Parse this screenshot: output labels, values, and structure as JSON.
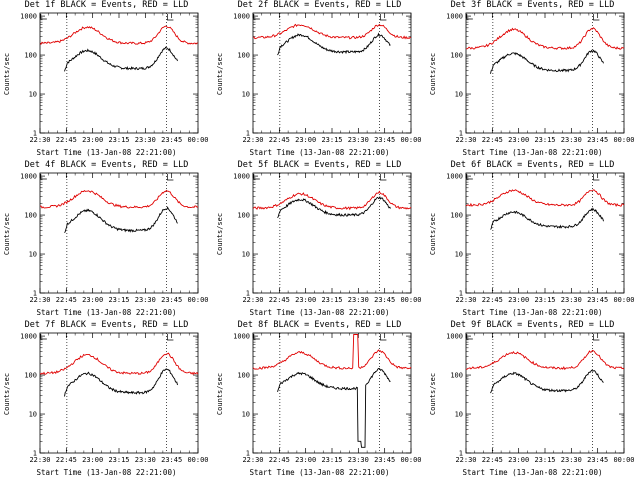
{
  "figure": {
    "background": "#ffffff",
    "event_color": "#000000",
    "lld_color": "#e00000"
  },
  "chart_data": [
    {
      "type": "line",
      "title": "Det 1f BLACK = Events, RED = LLD",
      "ylabel": "Counts/sec",
      "xlabel": "Start Time (13-Jan-08 22:21:00)",
      "x_ticks": [
        "22:30",
        "22:45",
        "23:00",
        "23:15",
        "23:30",
        "23:45",
        "00:00"
      ],
      "y_ticks": [
        "1",
        "10",
        "100",
        "1000"
      ],
      "ylim": [
        1,
        1200
      ],
      "yscale": "log",
      "shape": "normal",
      "series": [
        {
          "name": "Events",
          "color": "#000000",
          "base": 45,
          "peak1": 130,
          "peak2": 150
        },
        {
          "name": "LLD",
          "color": "#e00000",
          "base": 200,
          "peak1": 520,
          "peak2": 550
        }
      ]
    },
    {
      "type": "line",
      "title": "Det 2f BLACK = Events, RED = LLD",
      "ylabel": "Counts/sec",
      "xlabel": "Start Time (13-Jan-08 22:21:00)",
      "x_ticks": [
        "22:30",
        "22:45",
        "23:00",
        "23:15",
        "23:30",
        "23:45",
        "00:00"
      ],
      "y_ticks": [
        "1",
        "10",
        "100",
        "1000"
      ],
      "ylim": [
        1,
        1200
      ],
      "yscale": "log",
      "shape": "normal",
      "series": [
        {
          "name": "Events",
          "color": "#000000",
          "base": 120,
          "peak1": 330,
          "peak2": 330
        },
        {
          "name": "LLD",
          "color": "#e00000",
          "base": 280,
          "peak1": 600,
          "peak2": 600
        }
      ]
    },
    {
      "type": "line",
      "title": "Det 3f BLACK = Events, RED = LLD",
      "ylabel": "Counts/sec",
      "xlabel": "Start Time (13-Jan-08 22:21:00)",
      "x_ticks": [
        "22:30",
        "22:45",
        "23:00",
        "23:15",
        "23:30",
        "23:45",
        "00:00"
      ],
      "y_ticks": [
        "1",
        "10",
        "100",
        "1000"
      ],
      "ylim": [
        1,
        1200
      ],
      "yscale": "log",
      "shape": "normal",
      "series": [
        {
          "name": "Events",
          "color": "#000000",
          "base": 40,
          "peak1": 110,
          "peak2": 130
        },
        {
          "name": "LLD",
          "color": "#e00000",
          "base": 150,
          "peak1": 450,
          "peak2": 480
        }
      ]
    },
    {
      "type": "line",
      "title": "Det 4f BLACK = Events, RED = LLD",
      "ylabel": "Counts/sec",
      "xlabel": "Start Time (13-Jan-08 22:21:00)",
      "x_ticks": [
        "22:30",
        "22:45",
        "23:00",
        "23:15",
        "23:30",
        "23:45",
        "00:00"
      ],
      "y_ticks": [
        "1",
        "10",
        "100",
        "1000"
      ],
      "ylim": [
        1,
        1200
      ],
      "yscale": "log",
      "shape": "normal",
      "series": [
        {
          "name": "Events",
          "color": "#000000",
          "base": 40,
          "peak1": 130,
          "peak2": 150
        },
        {
          "name": "LLD",
          "color": "#e00000",
          "base": 160,
          "peak1": 420,
          "peak2": 420
        }
      ]
    },
    {
      "type": "line",
      "title": "Det 5f BLACK = Events, RED = LLD",
      "ylabel": "Counts/sec",
      "xlabel": "Start Time (13-Jan-08 22:21:00)",
      "x_ticks": [
        "22:30",
        "22:45",
        "23:00",
        "23:15",
        "23:30",
        "23:45",
        "00:00"
      ],
      "y_ticks": [
        "1",
        "10",
        "100",
        "1000"
      ],
      "ylim": [
        1,
        1200
      ],
      "yscale": "log",
      "shape": "normal",
      "series": [
        {
          "name": "Events",
          "color": "#000000",
          "base": 100,
          "peak1": 250,
          "peak2": 280
        },
        {
          "name": "LLD",
          "color": "#e00000",
          "base": 150,
          "peak1": 350,
          "peak2": 380
        }
      ]
    },
    {
      "type": "line",
      "title": "Det 6f BLACK = Events, RED = LLD",
      "ylabel": "Counts/sec",
      "xlabel": "Start Time (13-Jan-08 22:21:00)",
      "x_ticks": [
        "22:30",
        "22:45",
        "23:00",
        "23:15",
        "23:30",
        "23:45",
        "00:00"
      ],
      "y_ticks": [
        "1",
        "10",
        "100",
        "1000"
      ],
      "ylim": [
        1,
        1200
      ],
      "yscale": "log",
      "shape": "normal",
      "series": [
        {
          "name": "Events",
          "color": "#000000",
          "base": 50,
          "peak1": 120,
          "peak2": 140
        },
        {
          "name": "LLD",
          "color": "#e00000",
          "base": 180,
          "peak1": 430,
          "peak2": 450
        }
      ]
    },
    {
      "type": "line",
      "title": "Det 7f BLACK = Events, RED = LLD",
      "ylabel": "Counts/sec",
      "xlabel": "Start Time (13-Jan-08 22:21:00)",
      "x_ticks": [
        "22:30",
        "22:45",
        "23:00",
        "23:15",
        "23:30",
        "23:45",
        "00:00"
      ],
      "y_ticks": [
        "1",
        "10",
        "100",
        "1000"
      ],
      "ylim": [
        1,
        1200
      ],
      "yscale": "log",
      "shape": "normal",
      "series": [
        {
          "name": "Events",
          "color": "#000000",
          "base": 35,
          "peak1": 110,
          "peak2": 140
        },
        {
          "name": "LLD",
          "color": "#e00000",
          "base": 110,
          "peak1": 330,
          "peak2": 360
        }
      ]
    },
    {
      "type": "line",
      "title": "Det 8f BLACK = Events, RED = LLD",
      "ylabel": "Counts/sec",
      "xlabel": "Start Time (13-Jan-08 22:21:00)",
      "x_ticks": [
        "22:30",
        "22:45",
        "23:00",
        "23:15",
        "23:30",
        "23:45",
        "00:00"
      ],
      "y_ticks": [
        "1",
        "10",
        "100",
        "1000"
      ],
      "ylim": [
        1,
        1200
      ],
      "yscale": "log",
      "shape": "det8",
      "series": [
        {
          "name": "Events",
          "color": "#000000",
          "base": 45,
          "peak1": 110,
          "peak2": 140
        },
        {
          "name": "LLD",
          "color": "#e00000",
          "base": 150,
          "peak1": 380,
          "peak2": 420
        }
      ]
    },
    {
      "type": "line",
      "title": "Det 9f BLACK = Events, RED = LLD",
      "ylabel": "Counts/sec",
      "xlabel": "Start Time (13-Jan-08 22:21:00)",
      "x_ticks": [
        "22:30",
        "22:45",
        "23:00",
        "23:15",
        "23:30",
        "23:45",
        "00:00"
      ],
      "y_ticks": [
        "1",
        "10",
        "100",
        "1000"
      ],
      "ylim": [
        1,
        1200
      ],
      "yscale": "log",
      "shape": "normal",
      "series": [
        {
          "name": "Events",
          "color": "#000000",
          "base": 40,
          "peak1": 110,
          "peak2": 130
        },
        {
          "name": "LLD",
          "color": "#e00000",
          "base": 150,
          "peak1": 380,
          "peak2": 420
        }
      ]
    }
  ]
}
